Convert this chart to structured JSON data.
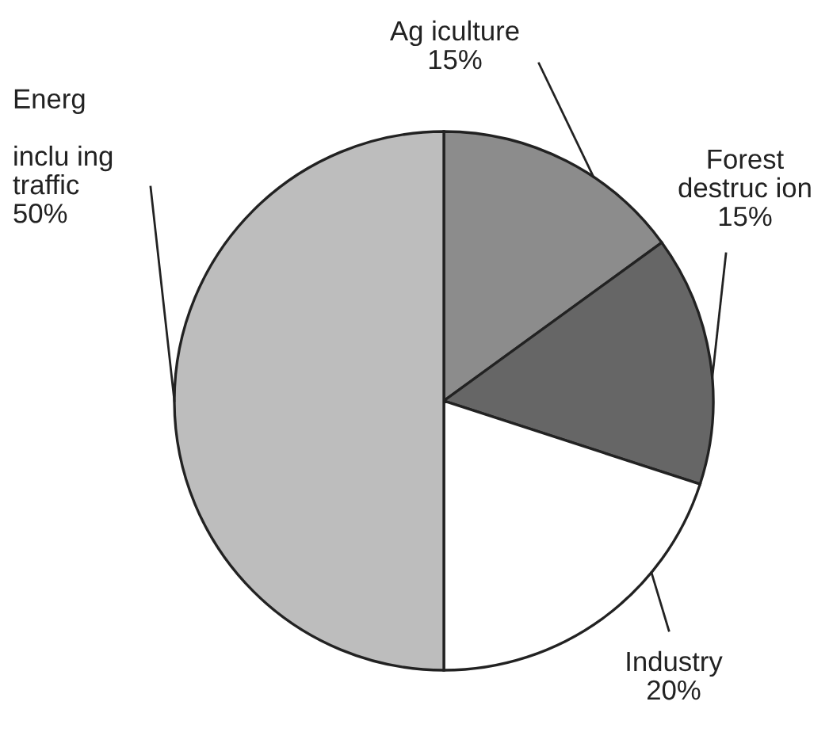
{
  "chart_data": {
    "type": "pie",
    "categories": [
      "Ag iculture",
      "Forest\ndestruc ion",
      "Industry",
      "Energ\n\ninclu ing\ntraffic"
    ],
    "values": [
      15,
      15,
      20,
      50
    ],
    "value_labels": [
      "15%",
      "15%",
      "20%",
      "50%"
    ],
    "colors": [
      "#8c8c8c",
      "#666666",
      "#ffffff",
      "#bdbdbd"
    ]
  }
}
